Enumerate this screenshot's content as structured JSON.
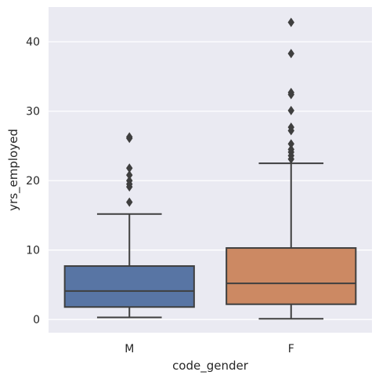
{
  "chart_data": {
    "type": "box",
    "xlabel": "code_gender",
    "ylabel": "yrs_employed",
    "ylim": [
      -1.9,
      45.0
    ],
    "yticks": [
      0,
      10,
      20,
      30,
      40
    ],
    "grid": true,
    "categories": [
      "M",
      "F"
    ],
    "boxes": [
      {
        "category": "M",
        "color": "#5875a4",
        "whisker_low": 0.3,
        "q1": 1.8,
        "median": 4.1,
        "q3": 7.7,
        "whisker_high": 15.2,
        "outliers": [
          16.9,
          19.1,
          19.5,
          20.0,
          20.8,
          21.8,
          26.1,
          26.3
        ]
      },
      {
        "category": "F",
        "color": "#cc8963",
        "whisker_low": 0.1,
        "q1": 2.2,
        "median": 5.2,
        "q3": 10.3,
        "whisker_high": 22.5,
        "outliers": [
          23.1,
          23.6,
          24.1,
          24.5,
          25.3,
          27.2,
          27.7,
          30.1,
          32.4,
          32.7,
          38.3,
          42.8
        ]
      }
    ]
  },
  "colors": {
    "plot_background": "#eaeaf2",
    "grid": "#ffffff",
    "edge": "#3f3f3f"
  }
}
